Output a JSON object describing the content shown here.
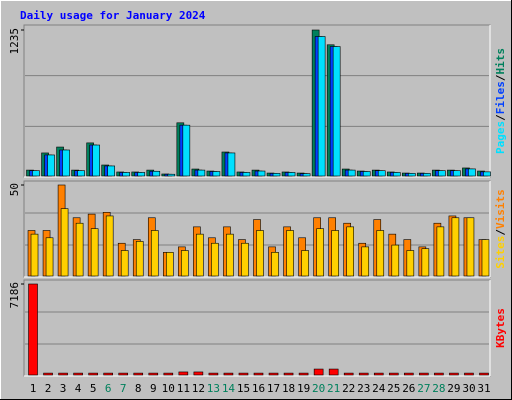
{
  "title": "Daily usage for January 2024",
  "legend_separator": "/",
  "chart_data": [
    {
      "type": "bar",
      "ylim": [
        0,
        1235
      ],
      "yticks": [
        1235
      ],
      "series": [
        {
          "name": "Hits",
          "color": "#00805c",
          "values": [
            50,
            195,
            245,
            50,
            280,
            93,
            34,
            34,
            50,
            17,
            450,
            59,
            42,
            203,
            34,
            50,
            25,
            34,
            25,
            1235,
            1110,
            59,
            42,
            50,
            34,
            25,
            25,
            50,
            50,
            68,
            42
          ]
        },
        {
          "name": "Files",
          "color": "#0040ff",
          "values": [
            45,
            178,
            220,
            45,
            262,
            85,
            30,
            30,
            40,
            15,
            430,
            50,
            38,
            195,
            30,
            42,
            22,
            30,
            20,
            1180,
            1095,
            50,
            38,
            45,
            30,
            22,
            22,
            45,
            45,
            60,
            35
          ]
        },
        {
          "name": "Pages",
          "color": "#00e0ff",
          "values": [
            45,
            178,
            220,
            45,
            262,
            85,
            30,
            30,
            40,
            15,
            430,
            50,
            38,
            195,
            30,
            42,
            22,
            30,
            20,
            1180,
            1095,
            50,
            38,
            45,
            30,
            22,
            22,
            45,
            45,
            60,
            35
          ]
        }
      ]
    },
    {
      "type": "bar",
      "ylim": [
        0,
        50
      ],
      "yticks": [
        50
      ],
      "series": [
        {
          "name": "Visits",
          "color": "#ff8000",
          "values": [
            25,
            25,
            50,
            32,
            34,
            35,
            18,
            20,
            32,
            13,
            16,
            27,
            21,
            27,
            20,
            31,
            16,
            27,
            21,
            32,
            32,
            29,
            18,
            31,
            23,
            20,
            16,
            29,
            33,
            32,
            20
          ]
        },
        {
          "name": "Sites",
          "color": "#ffd000",
          "values": [
            23,
            21,
            37,
            29,
            26,
            33,
            14,
            19,
            25,
            13,
            14,
            23,
            18,
            23,
            18,
            25,
            13,
            25,
            14,
            26,
            25,
            27,
            16,
            25,
            17,
            14,
            15,
            27,
            32,
            32,
            20
          ]
        }
      ]
    },
    {
      "type": "bar",
      "ylim": [
        0,
        7186
      ],
      "yticks": [
        7186
      ],
      "categories": [
        "1",
        "2",
        "3",
        "4",
        "5",
        "6",
        "7",
        "8",
        "9",
        "10",
        "11",
        "12",
        "13",
        "14",
        "15",
        "16",
        "17",
        "18",
        "19",
        "20",
        "21",
        "22",
        "23",
        "24",
        "25",
        "26",
        "27",
        "28",
        "29",
        "30",
        "31"
      ],
      "category_colors": [
        "#000000",
        "#000000",
        "#000000",
        "#000000",
        "#000000",
        "#00805c",
        "#00805c",
        "#000000",
        "#000000",
        "#000000",
        "#000000",
        "#000000",
        "#00805c",
        "#00805c",
        "#000000",
        "#000000",
        "#000000",
        "#000000",
        "#000000",
        "#00805c",
        "#00805c",
        "#000000",
        "#000000",
        "#000000",
        "#000000",
        "#000000",
        "#00805c",
        "#00805c",
        "#000000",
        "#000000",
        "#000000"
      ],
      "series": [
        {
          "name": "KBytes",
          "color": "#ff0000",
          "values": [
            7186,
            150,
            150,
            150,
            150,
            150,
            150,
            150,
            150,
            150,
            240,
            240,
            150,
            150,
            150,
            150,
            150,
            150,
            150,
            470,
            470,
            150,
            150,
            150,
            150,
            150,
            150,
            150,
            150,
            150,
            150
          ]
        }
      ]
    }
  ]
}
